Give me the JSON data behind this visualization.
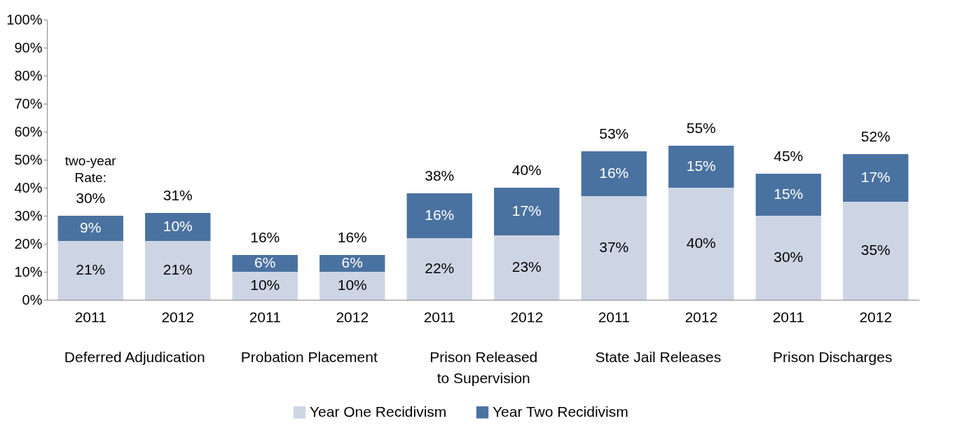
{
  "chart_data": {
    "type": "bar",
    "stacked": true,
    "categories": [
      "2011",
      "2012",
      "2011",
      "2012",
      "2011",
      "2012",
      "2011",
      "2012",
      "2011",
      "2012"
    ],
    "series": [
      {
        "name": "Year One Recidivism",
        "color": "#cdd5e4",
        "values": [
          21,
          21,
          10,
          10,
          22,
          23,
          37,
          40,
          30,
          35
        ],
        "value_labels": [
          "21%",
          "21%",
          "10%",
          "10%",
          "22%",
          "23%",
          "37%",
          "40%",
          "30%",
          "35%"
        ]
      },
      {
        "name": "Year Two Recidivism",
        "color": "#4a72a0",
        "values": [
          9,
          10,
          6,
          6,
          16,
          17,
          16,
          15,
          15,
          17
        ],
        "value_labels": [
          "9%",
          "10%",
          "6%",
          "6%",
          "16%",
          "17%",
          "16%",
          "15%",
          "15%",
          "17%"
        ]
      }
    ],
    "totals": [
      "30%",
      "31%",
      "16%",
      "16%",
      "38%",
      "40%",
      "53%",
      "55%",
      "45%",
      "52%"
    ],
    "annotations": [
      "two-year Rate:",
      "Deferred Adjudication",
      "Probation Placement",
      "Prison Released to Supervision",
      "State Jail Releases",
      "Prison Discharges"
    ],
    "ylim": [
      0,
      100
    ],
    "yticks": [
      {
        "value": 0,
        "label": "0%"
      },
      {
        "value": 10,
        "label": "10%"
      },
      {
        "value": 20,
        "label": "20%"
      },
      {
        "value": 30,
        "label": "30%"
      },
      {
        "value": 40,
        "label": "40%"
      },
      {
        "value": 50,
        "label": "50%"
      },
      {
        "value": 60,
        "label": "60%"
      },
      {
        "value": 70,
        "label": "70%"
      },
      {
        "value": 80,
        "label": "80%"
      },
      {
        "value": 90,
        "label": "90%"
      },
      {
        "value": 100,
        "label": "100%"
      }
    ],
    "grid": false,
    "legend": "bottom"
  }
}
